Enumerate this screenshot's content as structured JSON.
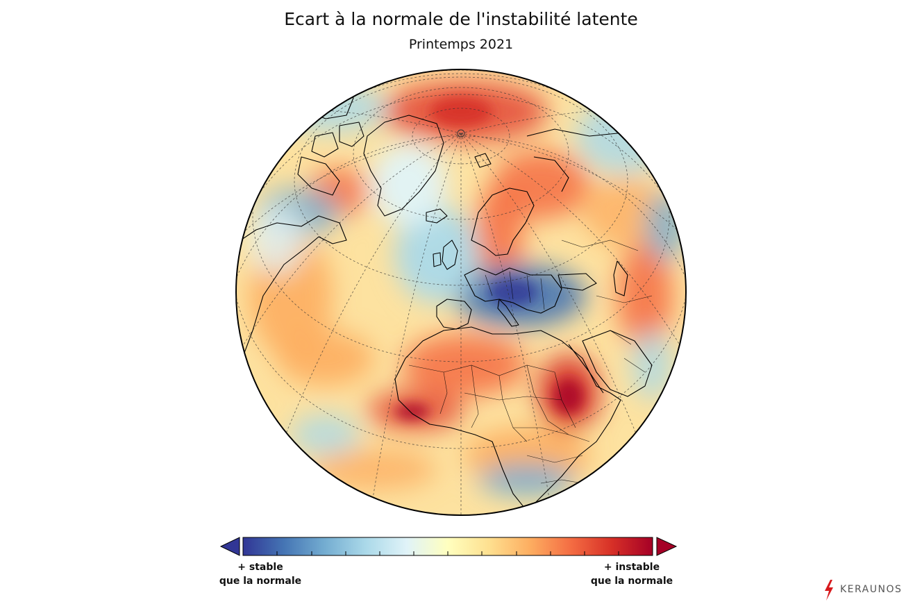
{
  "title": "Ecart à la normale de l'instabilité latente",
  "subtitle": "Printemps 2021",
  "colorbar": {
    "left_label_line1": "+ stable",
    "left_label_line2": "que la normale",
    "right_label_line1": "+ instable",
    "right_label_line2": "que la normale",
    "colors": [
      "#313695",
      "#4575b4",
      "#74add1",
      "#abd9e9",
      "#e0f3f8",
      "#ffffbf",
      "#fee090",
      "#fdae61",
      "#f46d43",
      "#d73027",
      "#a50026"
    ]
  },
  "brand": {
    "name": "KERAUNOS",
    "accent": "#d7191c"
  }
}
